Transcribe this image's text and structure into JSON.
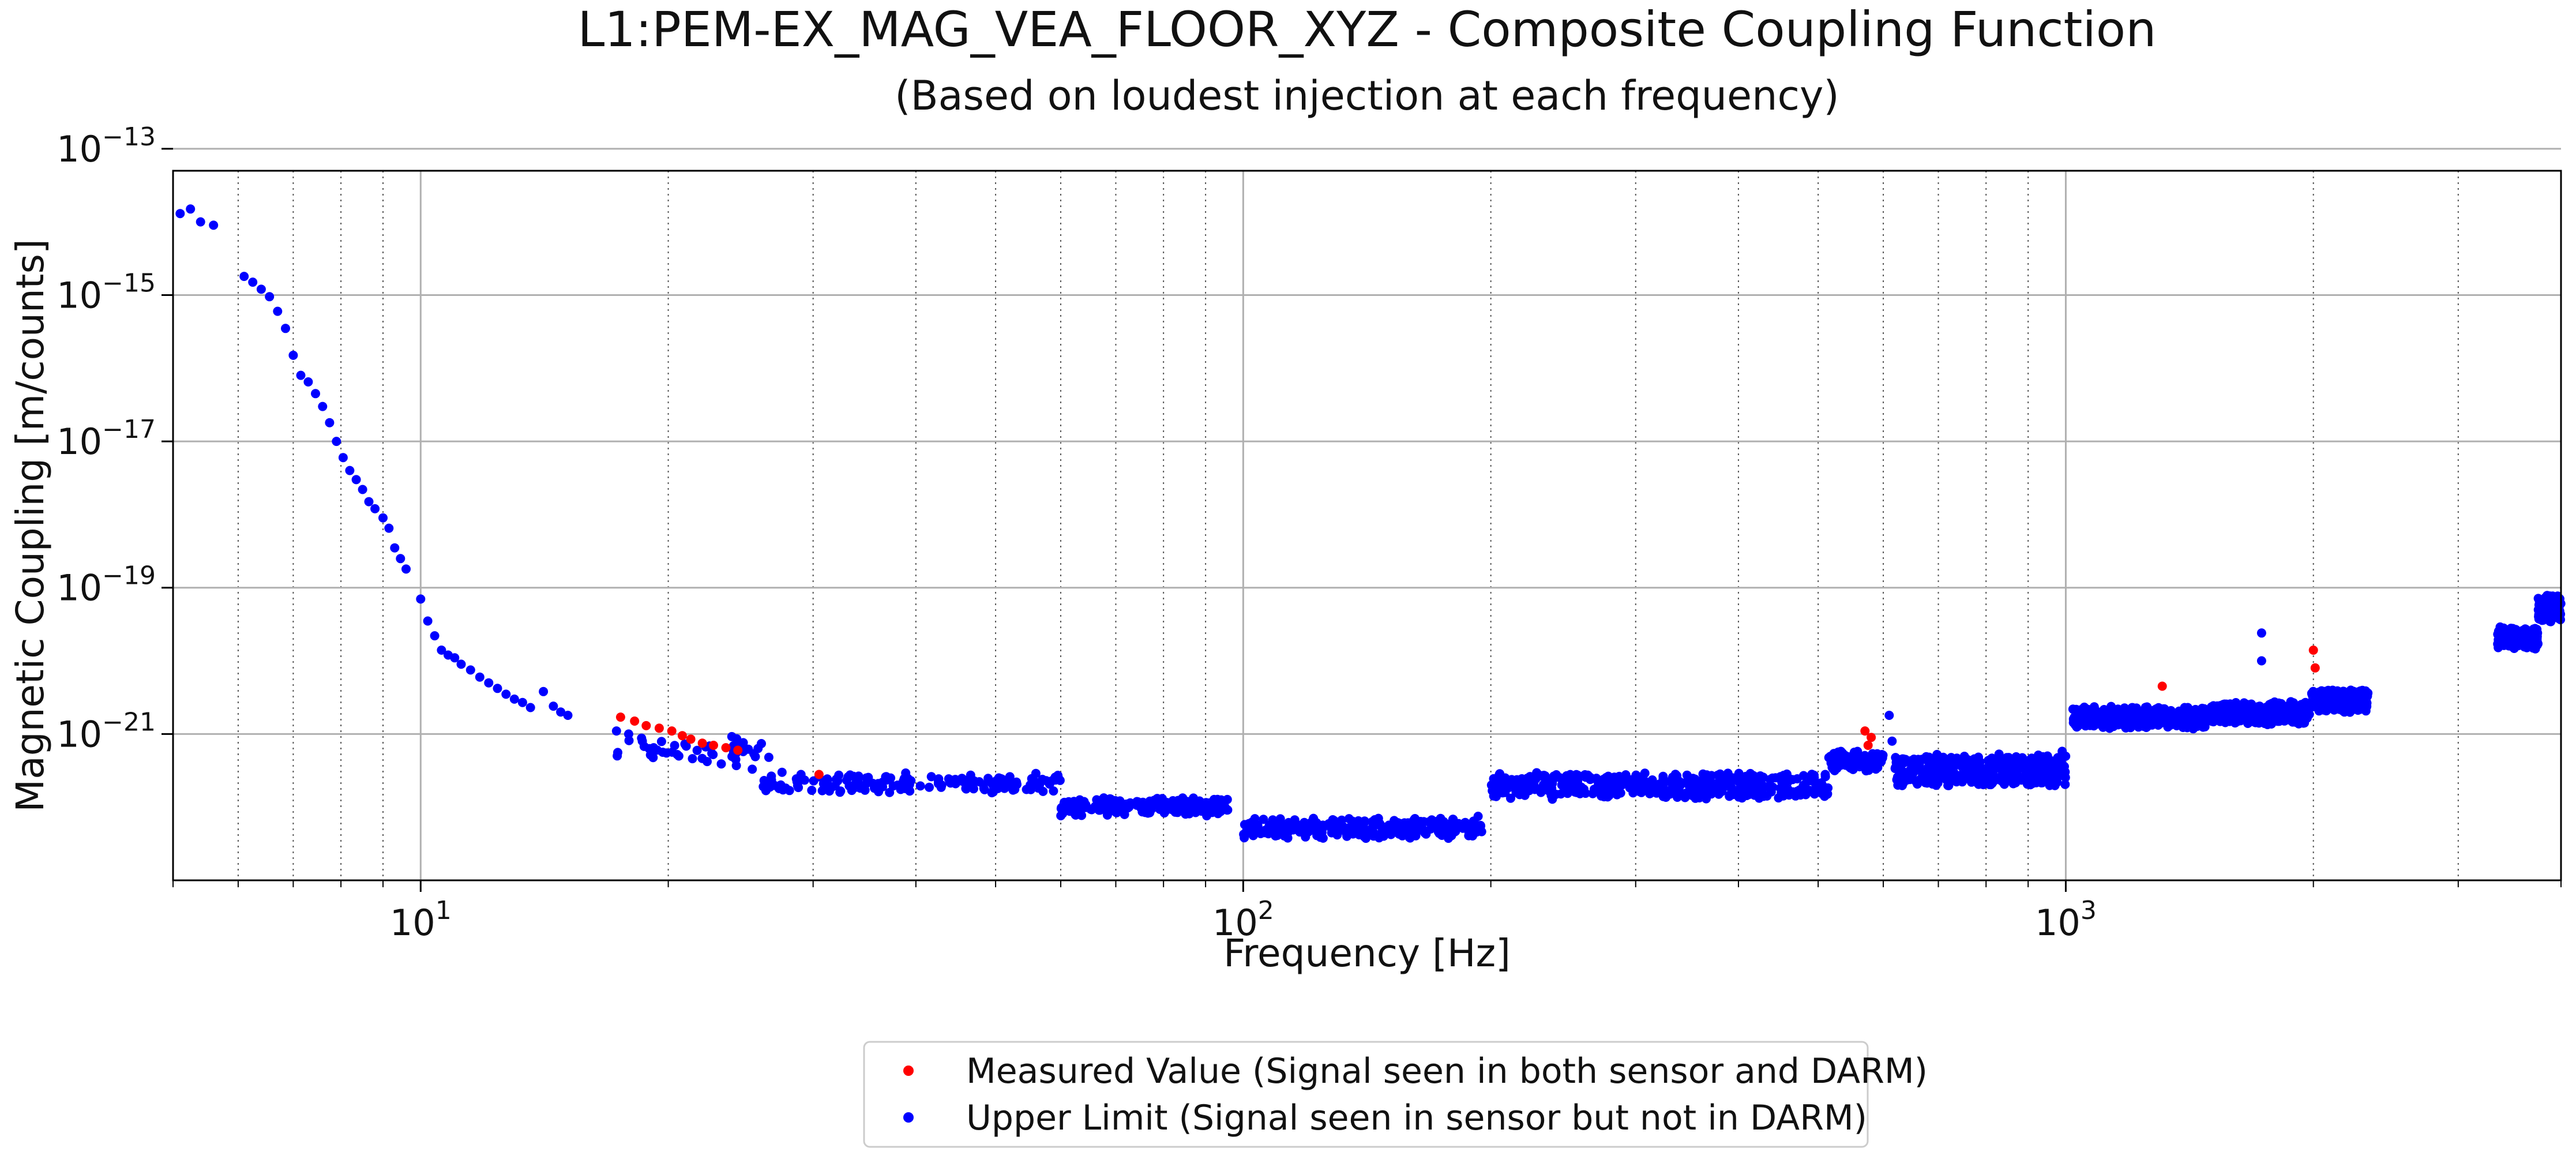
{
  "chart_data": {
    "type": "scatter",
    "title": "L1:PEM-EX_MAG_VEA_FLOOR_XYZ - Composite Coupling Function",
    "subtitle": "(Based on loudest injection at each frequency)",
    "xlabel": "Frequency [Hz]",
    "ylabel": "Magnetic Coupling [m/counts]",
    "x_scale": "log",
    "y_scale": "log",
    "xlim": [
      5,
      4000
    ],
    "ylim": [
      1e-23,
      5e-14
    ],
    "grid": true,
    "legend_position": "bottom-center",
    "x_major_ticks": [
      {
        "value": 10,
        "base": "10",
        "exp": "1"
      },
      {
        "value": 100,
        "base": "10",
        "exp": "2"
      },
      {
        "value": 1000,
        "base": "10",
        "exp": "3"
      }
    ],
    "y_major_ticks": [
      {
        "value": 1e-13,
        "base": "10",
        "exp": "−13"
      },
      {
        "value": 1e-15,
        "base": "10",
        "exp": "−15"
      },
      {
        "value": 1e-17,
        "base": "10",
        "exp": "−17"
      },
      {
        "value": 1e-19,
        "base": "10",
        "exp": "−19"
      },
      {
        "value": 1e-21,
        "base": "10",
        "exp": "−21"
      }
    ],
    "series": [
      {
        "name": "Measured Value (Signal seen in both sensor and DARM)",
        "color": "#ff0000",
        "points": [
          [
            17.5,
            1.7e-21
          ],
          [
            18.2,
            1.5e-21
          ],
          [
            18.8,
            1.3e-21
          ],
          [
            19.5,
            1.2e-21
          ],
          [
            20.2,
            1.1e-21
          ],
          [
            20.8,
            9.5e-22
          ],
          [
            21.3,
            8.5e-22
          ],
          [
            22.0,
            7.5e-22
          ],
          [
            22.7,
            7e-22
          ],
          [
            23.5,
            6.5e-22
          ],
          [
            24.3,
            6e-22
          ],
          [
            30.5,
            2.8e-22
          ],
          [
            570,
            1.1e-21
          ],
          [
            575,
            7e-22
          ],
          [
            580,
            9e-22
          ],
          [
            1310,
            4.5e-21
          ],
          [
            2000,
            1.4e-20
          ],
          [
            2010,
            8e-21
          ]
        ]
      },
      {
        "name": "Upper Limit (Signal seen in sensor but not in DARM)",
        "color": "#0000ff",
        "points": [
          [
            5.1,
            1.3e-14
          ],
          [
            5.25,
            1.5e-14
          ],
          [
            5.4,
            1e-14
          ],
          [
            5.6,
            9e-15
          ],
          [
            6.1,
            1.8e-15
          ],
          [
            6.25,
            1.5e-15
          ],
          [
            6.4,
            1.2e-15
          ],
          [
            6.55,
            9.5e-16
          ],
          [
            6.7,
            6e-16
          ],
          [
            6.85,
            3.5e-16
          ],
          [
            7.0,
            1.5e-16
          ],
          [
            7.15,
            8e-17
          ],
          [
            7.3,
            6.5e-17
          ],
          [
            7.45,
            4.5e-17
          ],
          [
            7.6,
            3e-17
          ],
          [
            7.75,
            1.8e-17
          ],
          [
            7.9,
            1e-17
          ],
          [
            8.05,
            6e-18
          ],
          [
            8.2,
            4e-18
          ],
          [
            8.35,
            3e-18
          ],
          [
            8.5,
            2.2e-18
          ],
          [
            8.65,
            1.5e-18
          ],
          [
            8.8,
            1.2e-18
          ],
          [
            9.0,
            9e-19
          ],
          [
            9.15,
            6.5e-19
          ],
          [
            9.3,
            3.5e-19
          ],
          [
            9.45,
            2.5e-19
          ],
          [
            9.6,
            1.8e-19
          ],
          [
            10.0,
            7e-20
          ],
          [
            10.2,
            3.5e-20
          ],
          [
            10.4,
            2.2e-20
          ],
          [
            10.6,
            1.4e-20
          ],
          [
            10.8,
            1.2e-20
          ],
          [
            11.0,
            1.1e-20
          ],
          [
            11.2,
            9e-21
          ],
          [
            11.5,
            7.5e-21
          ],
          [
            11.8,
            6e-21
          ],
          [
            12.1,
            5e-21
          ],
          [
            12.4,
            4.2e-21
          ],
          [
            12.7,
            3.5e-21
          ],
          [
            13.0,
            3e-21
          ],
          [
            13.3,
            2.7e-21
          ],
          [
            13.6,
            2.3e-21
          ],
          [
            14.1,
            3.8e-21
          ],
          [
            14.5,
            2.4e-21
          ],
          [
            14.8,
            2e-21
          ],
          [
            15.1,
            1.8e-21
          ],
          [
            17.3,
            1.1e-21
          ],
          [
            17.9,
            1e-21
          ],
          [
            18.6,
            8e-22
          ],
          [
            19.2,
            6.5e-22
          ],
          [
            19.9,
            5.5e-22
          ],
          [
            20.6,
            5e-22
          ],
          [
            21.4,
            4.6e-22
          ],
          [
            22.3,
            4.2e-22
          ],
          [
            23.2,
            3.9e-22
          ],
          [
            24.2,
            3.7e-22
          ],
          [
            25.3,
            3.3e-22
          ],
          [
            26.5,
            4.8e-22
          ],
          [
            27.5,
            3e-22
          ],
          [
            29.0,
            2.8e-22
          ],
          [
            30.5,
            2.6e-22
          ],
          [
            32.0,
            2.4e-22
          ],
          [
            34.0,
            2.2e-22
          ],
          [
            36.0,
            2.1e-22
          ],
          [
            38.0,
            2e-22
          ],
          [
            40.5,
            1.95e-22
          ],
          [
            43.0,
            2e-22
          ],
          [
            46.0,
            2.05e-22
          ],
          [
            49.5,
            2.1e-22
          ],
          [
            53.0,
            2.2e-22
          ],
          [
            57.0,
            2.4e-22
          ],
          [
            59.5,
            2.6e-22
          ],
          [
            61.0,
            1.1e-22
          ],
          [
            66.0,
            1e-22
          ],
          [
            72.0,
            9.5e-23
          ],
          [
            78.0,
            1e-22
          ],
          [
            84.0,
            1.1e-22
          ],
          [
            90.0,
            1.15e-22
          ],
          [
            95.0,
            1.2e-22
          ],
          [
            101.0,
            4.8e-23
          ],
          [
            106.0,
            4.5e-23
          ],
          [
            112.0,
            4.3e-23
          ],
          [
            120.0,
            4.6e-23
          ],
          [
            130.0,
            4.8e-23
          ],
          [
            140.0,
            5e-23
          ],
          [
            152.0,
            5.5e-23
          ],
          [
            165.0,
            6e-23
          ],
          [
            180.0,
            6.8e-23
          ],
          [
            193.0,
            7.5e-23
          ],
          [
            203.0,
            1.4e-22
          ],
          [
            220.0,
            1.45e-22
          ],
          [
            240.0,
            1.5e-22
          ],
          [
            260.0,
            1.6e-22
          ],
          [
            285.0,
            1.7e-22
          ],
          [
            310.0,
            1.85e-22
          ],
          [
            340.0,
            2e-22
          ],
          [
            370.0,
            2.15e-22
          ],
          [
            400.0,
            2.3e-22
          ],
          [
            440.0,
            2.5e-22
          ],
          [
            480.0,
            2.7e-22
          ],
          [
            510.0,
            2.8e-22
          ],
          [
            520.0,
            3.5e-22
          ],
          [
            540.0,
            3.8e-22
          ],
          [
            560.0,
            4e-22
          ],
          [
            585.0,
            4.5e-22
          ],
          [
            610.0,
            1.8e-21
          ],
          [
            615.0,
            8e-22
          ],
          [
            625.0,
            2e-22
          ],
          [
            660.0,
            2.2e-22
          ],
          [
            700.0,
            2.5e-22
          ],
          [
            750.0,
            2.9e-22
          ],
          [
            800.0,
            3.3e-22
          ],
          [
            850.0,
            3.8e-22
          ],
          [
            900.0,
            4.3e-22
          ],
          [
            950.0,
            5e-22
          ],
          [
            990.0,
            5.8e-22
          ],
          [
            1030.0,
            1.5e-21
          ],
          [
            1100.0,
            1.6e-21
          ],
          [
            1180.0,
            1.7e-21
          ],
          [
            1260.0,
            1.8e-21
          ],
          [
            1340.0,
            1.9e-21
          ],
          [
            1420.0,
            2e-21
          ],
          [
            1550.0,
            1.8e-21
          ],
          [
            1650.0,
            1.9e-21
          ],
          [
            1730.0,
            2.4e-20
          ],
          [
            1730.0,
            1e-20
          ],
          [
            1800.0,
            2.2e-21
          ],
          [
            1900.0,
            2.3e-21
          ],
          [
            1960.0,
            2.4e-21
          ],
          [
            2000.0,
            3e-21
          ],
          [
            2100.0,
            3.1e-21
          ],
          [
            2200.0,
            3.2e-21
          ],
          [
            2300.0,
            3.3e-21
          ],
          [
            3400.0,
            2e-20
          ],
          [
            3550.0,
            2.2e-20
          ],
          [
            3700.0,
            2.4e-20
          ],
          [
            3850.0,
            5e-20
          ],
          [
            3950.0,
            7e-20
          ]
        ],
        "bands": [
          {
            "x": [
              17.3,
              26.0
            ],
            "y": [
              3.5e-22,
              1.1e-21
            ],
            "n": 40
          },
          {
            "x": [
              26.0,
              60.0
            ],
            "y": [
              1.5e-22,
              3e-22
            ],
            "n": 160
          },
          {
            "x": [
              60.0,
              97.0
            ],
            "y": [
              7.5e-23,
              1.4e-22
            ],
            "n": 200
          },
          {
            "x": [
              100.0,
              195.0
            ],
            "y": [
              3.6e-23,
              7.5e-23
            ],
            "n": 260
          },
          {
            "x": [
              200.0,
              515.0
            ],
            "y": [
              1.2e-22,
              3.2e-22
            ],
            "n": 420
          },
          {
            "x": [
              515.0,
              600.0
            ],
            "y": [
              3e-22,
              6e-22
            ],
            "n": 120
          },
          {
            "x": [
              620.0,
              1000.0
            ],
            "y": [
              1.7e-22,
              6e-22
            ],
            "n": 380
          },
          {
            "x": [
              1020.0,
              1480.0
            ],
            "y": [
              1.1e-21,
              2.5e-21
            ],
            "n": 380
          },
          {
            "x": [
              1500.0,
              1980.0
            ],
            "y": [
              1.3e-21,
              2.9e-21
            ],
            "n": 360
          },
          {
            "x": [
              1990.0,
              2330.0
            ],
            "y": [
              1.9e-21,
              4.3e-21
            ],
            "n": 300
          },
          {
            "x": [
              3350.0,
              3750.0
            ],
            "y": [
              1.4e-20,
              3e-20
            ],
            "n": 150
          },
          {
            "x": [
              3750.0,
              4000.0
            ],
            "y": [
              3e-20,
              9e-20
            ],
            "n": 90
          }
        ]
      }
    ]
  }
}
